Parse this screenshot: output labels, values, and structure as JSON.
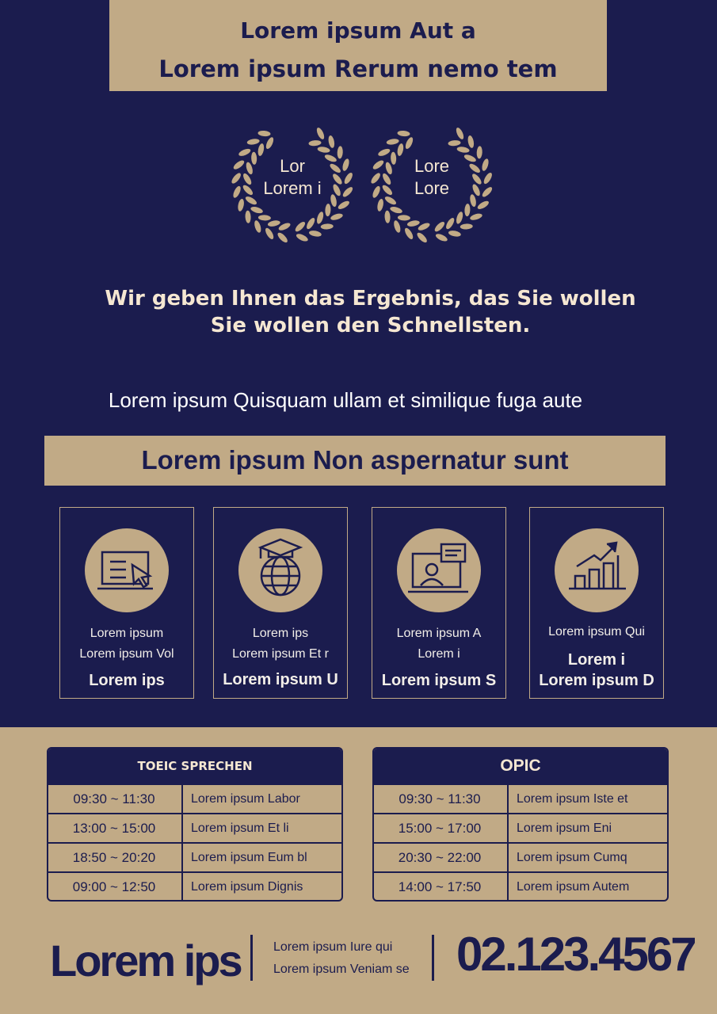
{
  "header": {
    "title_lines": [
      "Lorem ipsum Aut a",
      "Lorem ipsum Rerum nemo tem"
    ]
  },
  "badges": [
    {
      "lines": [
        "Lor",
        "Lorem i"
      ]
    },
    {
      "lines": [
        "Lore",
        "Lore"
      ]
    }
  ],
  "tagline": [
    "Wir geben Ihnen das Ergebnis, das Sie wollen",
    "Sie wollen den Schnellsten."
  ],
  "intro": "Lorem ipsum Quisquam ullam et similique fuga aute",
  "section_title": "Lorem ipsum Non aspernatur sunt",
  "features": [
    {
      "small": [
        "Lorem ipsum",
        "Lorem ipsum Vol"
      ],
      "bold": [
        "Lorem ips"
      ]
    },
    {
      "small": [
        "Lorem ips",
        "Lorem ipsum Et r"
      ],
      "bold": [
        "Lorem ipsum U"
      ]
    },
    {
      "small": [
        "Lorem ipsum A",
        "Lorem i"
      ],
      "bold": [
        "Lorem ipsum S"
      ]
    },
    {
      "small": [
        "Lorem ipsum Qui"
      ],
      "bold": [
        "Lorem i",
        "Lorem ipsum D"
      ]
    }
  ],
  "schedules": [
    {
      "title": "TOEIC SPRECHEN",
      "rows": [
        [
          "09:30 ~ 11:30",
          "Lorem ipsum Labor"
        ],
        [
          "13:00 ~ 15:00",
          "Lorem ipsum Et li"
        ],
        [
          "18:50 ~ 20:20",
          "Lorem ipsum Eum bl"
        ],
        [
          "09:00 ~ 12:50",
          "Lorem ipsum Dignis"
        ]
      ]
    },
    {
      "title": "OPIC",
      "rows": [
        [
          "09:30 ~ 11:30",
          "Lorem ipsum Iste et"
        ],
        [
          "15:00 ~ 17:00",
          "Lorem ipsum Eni"
        ],
        [
          "20:30 ~ 22:00",
          "Lorem ipsum Cumq"
        ],
        [
          "14:00 ~ 17:50",
          "Lorem ipsum Autem"
        ]
      ]
    }
  ],
  "footer": {
    "brand": "Lorem ips",
    "lines": [
      "Lorem ipsum Iure qui",
      "Lorem ipsum Veniam se"
    ],
    "phone": "02.123.4567"
  }
}
